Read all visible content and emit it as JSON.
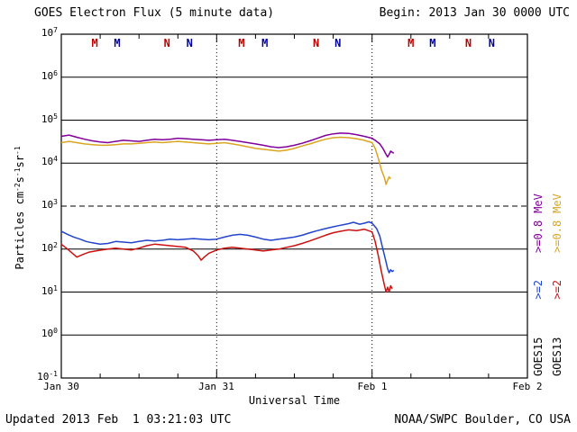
{
  "header": {
    "title": "GOES Electron Flux (5 minute data)",
    "begin": "Begin: 2013 Jan 30 0000 UTC"
  },
  "footer": {
    "updated": "Updated 2013 Feb  1 03:21:03 UTC",
    "source": "NOAA/SWPC Boulder, CO USA"
  },
  "axes": {
    "x_label": "Universal Time",
    "y_label_segments": [
      {
        "text": "Particles cm",
        "sup": false
      },
      {
        "text": "-2",
        "sup": true
      },
      {
        "text": "s",
        "sup": false
      },
      {
        "text": "-1",
        "sup": true
      },
      {
        "text": "sr",
        "sup": false
      },
      {
        "text": "-1",
        "sup": true
      }
    ],
    "y_exponent_min": -1,
    "y_exponent_max": 7,
    "y_tick_base": "10"
  },
  "legend": {
    "columns": [
      {
        "satellite": "GOES15",
        "labels": [
          {
            "text": "GOES15",
            "color": "#000000"
          },
          {
            "text": ">=2",
            "color": "#2244cc"
          },
          {
            "text": ">=0.8",
            "color": "#800099"
          },
          {
            "text": "MeV",
            "color": "#800099"
          }
        ]
      },
      {
        "satellite": "GOES13",
        "labels": [
          {
            "text": "GOES13",
            "color": "#000000"
          },
          {
            "text": ">=2",
            "color": "#cc1111"
          },
          {
            "text": ">=0.8",
            "color": "#DAA520"
          },
          {
            "text": "MeV",
            "color": "#DAA520"
          }
        ]
      }
    ]
  },
  "chart_data": {
    "type": "line",
    "title": "GOES Electron Flux (5 minute data)",
    "xlabel": "Universal Time",
    "ylabel": "Particles cm-2 s-1 sr-1",
    "x_unit": "days since 2013 Jan 30 0000 UTC",
    "xlim_days": [
      0,
      3
    ],
    "ylog": true,
    "ylim": [
      0.1,
      10000000
    ],
    "threshold": 1000,
    "day_gridlines": [
      1,
      2
    ],
    "x_ticks": [
      {
        "label": "Jan 30",
        "day": 0
      },
      {
        "label": "Jan 31",
        "day": 1
      },
      {
        "label": "Feb 1",
        "day": 2
      },
      {
        "label": "Feb 2",
        "day": 3
      }
    ],
    "event_markers": [
      {
        "label": "M",
        "color": "#bb0000",
        "day": 0.215
      },
      {
        "label": "M",
        "color": "#000099",
        "day": 0.36
      },
      {
        "label": "N",
        "color": "#bb0000",
        "day": 0.68
      },
      {
        "label": "N",
        "color": "#000099",
        "day": 0.825
      },
      {
        "label": "M",
        "color": "#bb0000",
        "day": 1.16
      },
      {
        "label": "M",
        "color": "#000099",
        "day": 1.31
      },
      {
        "label": "N",
        "color": "#bb0000",
        "day": 1.64
      },
      {
        "label": "N",
        "color": "#000099",
        "day": 1.78
      },
      {
        "label": "M",
        "color": "#bb0000",
        "day": 2.25
      },
      {
        "label": "M",
        "color": "#000099",
        "day": 2.39
      },
      {
        "label": "N",
        "color": "#bb0000",
        "day": 2.62
      },
      {
        "label": "N",
        "color": "#000099",
        "day": 2.77
      }
    ],
    "series": [
      {
        "name": "GOES13 >=0.8 MeV",
        "color": "#DAA520",
        "points": [
          [
            0,
            30000
          ],
          [
            0.05,
            32000
          ],
          [
            0.1,
            30000
          ],
          [
            0.15,
            28000
          ],
          [
            0.2,
            27000
          ],
          [
            0.25,
            26000
          ],
          [
            0.3,
            26000
          ],
          [
            0.35,
            27000
          ],
          [
            0.4,
            28000
          ],
          [
            0.45,
            28000
          ],
          [
            0.5,
            29000
          ],
          [
            0.55,
            30000
          ],
          [
            0.6,
            31000
          ],
          [
            0.65,
            30000
          ],
          [
            0.7,
            31000
          ],
          [
            0.75,
            32000
          ],
          [
            0.8,
            31000
          ],
          [
            0.85,
            30000
          ],
          [
            0.9,
            29000
          ],
          [
            0.95,
            28000
          ],
          [
            1,
            29000
          ],
          [
            1.05,
            30000
          ],
          [
            1.1,
            28000
          ],
          [
            1.15,
            26000
          ],
          [
            1.2,
            24000
          ],
          [
            1.25,
            22000
          ],
          [
            1.3,
            21000
          ],
          [
            1.35,
            20000
          ],
          [
            1.4,
            19000
          ],
          [
            1.45,
            20000
          ],
          [
            1.5,
            22000
          ],
          [
            1.55,
            25000
          ],
          [
            1.6,
            28000
          ],
          [
            1.65,
            32000
          ],
          [
            1.7,
            36000
          ],
          [
            1.75,
            39000
          ],
          [
            1.8,
            40000
          ],
          [
            1.85,
            39000
          ],
          [
            1.9,
            37000
          ],
          [
            1.95,
            34000
          ],
          [
            2,
            30000
          ],
          [
            2.02,
            22000
          ],
          [
            2.04,
            13000
          ],
          [
            2.06,
            7000
          ],
          [
            2.08,
            4500
          ],
          [
            2.09,
            3200
          ],
          [
            2.1,
            4000
          ],
          [
            2.11,
            4800
          ],
          [
            2.12,
            4300
          ]
        ]
      },
      {
        "name": "GOES15 >=0.8 MeV",
        "color": "#800099",
        "points": [
          [
            0,
            42000
          ],
          [
            0.05,
            45000
          ],
          [
            0.1,
            40000
          ],
          [
            0.15,
            36000
          ],
          [
            0.2,
            33000
          ],
          [
            0.25,
            31000
          ],
          [
            0.3,
            30000
          ],
          [
            0.35,
            32000
          ],
          [
            0.4,
            34000
          ],
          [
            0.45,
            33000
          ],
          [
            0.5,
            32000
          ],
          [
            0.55,
            34000
          ],
          [
            0.6,
            36000
          ],
          [
            0.65,
            35000
          ],
          [
            0.7,
            36000
          ],
          [
            0.75,
            38000
          ],
          [
            0.8,
            37000
          ],
          [
            0.85,
            36000
          ],
          [
            0.9,
            35000
          ],
          [
            0.95,
            34000
          ],
          [
            1,
            35000
          ],
          [
            1.05,
            36000
          ],
          [
            1.1,
            34000
          ],
          [
            1.15,
            32000
          ],
          [
            1.2,
            30000
          ],
          [
            1.25,
            28000
          ],
          [
            1.3,
            26000
          ],
          [
            1.35,
            24000
          ],
          [
            1.4,
            23000
          ],
          [
            1.45,
            24000
          ],
          [
            1.5,
            26000
          ],
          [
            1.55,
            29000
          ],
          [
            1.6,
            33000
          ],
          [
            1.65,
            38000
          ],
          [
            1.7,
            44000
          ],
          [
            1.75,
            48000
          ],
          [
            1.8,
            50000
          ],
          [
            1.85,
            49000
          ],
          [
            1.9,
            46000
          ],
          [
            1.95,
            42000
          ],
          [
            2,
            38000
          ],
          [
            2.02,
            34000
          ],
          [
            2.05,
            28000
          ],
          [
            2.07,
            22000
          ],
          [
            2.09,
            16000
          ],
          [
            2.1,
            14000
          ],
          [
            2.11,
            16000
          ],
          [
            2.12,
            19000
          ],
          [
            2.13,
            18000
          ],
          [
            2.14,
            17000
          ]
        ]
      },
      {
        "name": "GOES13 >=2 MeV",
        "color": "#cc1111",
        "points": [
          [
            0,
            130
          ],
          [
            0.04,
            100
          ],
          [
            0.08,
            75
          ],
          [
            0.1,
            65
          ],
          [
            0.14,
            75
          ],
          [
            0.18,
            85
          ],
          [
            0.22,
            90
          ],
          [
            0.26,
            95
          ],
          [
            0.3,
            100
          ],
          [
            0.35,
            105
          ],
          [
            0.4,
            100
          ],
          [
            0.45,
            95
          ],
          [
            0.5,
            105
          ],
          [
            0.55,
            120
          ],
          [
            0.6,
            130
          ],
          [
            0.65,
            125
          ],
          [
            0.7,
            120
          ],
          [
            0.75,
            115
          ],
          [
            0.8,
            110
          ],
          [
            0.85,
            90
          ],
          [
            0.88,
            70
          ],
          [
            0.9,
            55
          ],
          [
            0.92,
            65
          ],
          [
            0.95,
            80
          ],
          [
            1,
            95
          ],
          [
            1.05,
            105
          ],
          [
            1.1,
            110
          ],
          [
            1.15,
            105
          ],
          [
            1.2,
            100
          ],
          [
            1.25,
            95
          ],
          [
            1.3,
            90
          ],
          [
            1.35,
            95
          ],
          [
            1.4,
            100
          ],
          [
            1.45,
            110
          ],
          [
            1.5,
            120
          ],
          [
            1.55,
            135
          ],
          [
            1.6,
            155
          ],
          [
            1.65,
            180
          ],
          [
            1.7,
            210
          ],
          [
            1.75,
            240
          ],
          [
            1.8,
            260
          ],
          [
            1.85,
            280
          ],
          [
            1.9,
            270
          ],
          [
            1.95,
            290
          ],
          [
            2,
            250
          ],
          [
            2.02,
            150
          ],
          [
            2.04,
            70
          ],
          [
            2.06,
            30
          ],
          [
            2.08,
            14
          ],
          [
            2.09,
            10
          ],
          [
            2.1,
            13
          ],
          [
            2.11,
            10
          ],
          [
            2.12,
            14
          ],
          [
            2.13,
            12
          ]
        ]
      },
      {
        "name": "GOES15 >=2 MeV",
        "color": "#2244cc",
        "points": [
          [
            0,
            260
          ],
          [
            0.04,
            220
          ],
          [
            0.08,
            190
          ],
          [
            0.12,
            170
          ],
          [
            0.16,
            150
          ],
          [
            0.2,
            140
          ],
          [
            0.25,
            130
          ],
          [
            0.3,
            135
          ],
          [
            0.35,
            150
          ],
          [
            0.4,
            145
          ],
          [
            0.45,
            140
          ],
          [
            0.5,
            150
          ],
          [
            0.55,
            160
          ],
          [
            0.6,
            155
          ],
          [
            0.65,
            160
          ],
          [
            0.7,
            170
          ],
          [
            0.75,
            165
          ],
          [
            0.8,
            170
          ],
          [
            0.85,
            175
          ],
          [
            0.9,
            170
          ],
          [
            0.95,
            165
          ],
          [
            1,
            170
          ],
          [
            1.05,
            190
          ],
          [
            1.1,
            210
          ],
          [
            1.15,
            220
          ],
          [
            1.2,
            210
          ],
          [
            1.25,
            190
          ],
          [
            1.3,
            170
          ],
          [
            1.35,
            160
          ],
          [
            1.4,
            170
          ],
          [
            1.45,
            180
          ],
          [
            1.5,
            190
          ],
          [
            1.55,
            210
          ],
          [
            1.6,
            240
          ],
          [
            1.65,
            270
          ],
          [
            1.7,
            300
          ],
          [
            1.75,
            330
          ],
          [
            1.8,
            360
          ],
          [
            1.85,
            390
          ],
          [
            1.88,
            420
          ],
          [
            1.92,
            380
          ],
          [
            1.95,
            400
          ],
          [
            1.98,
            430
          ],
          [
            2,
            400
          ],
          [
            2.03,
            300
          ],
          [
            2.05,
            200
          ],
          [
            2.07,
            100
          ],
          [
            2.09,
            50
          ],
          [
            2.1,
            35
          ],
          [
            2.11,
            28
          ],
          [
            2.12,
            33
          ],
          [
            2.13,
            30
          ],
          [
            2.14,
            32
          ]
        ]
      }
    ]
  }
}
